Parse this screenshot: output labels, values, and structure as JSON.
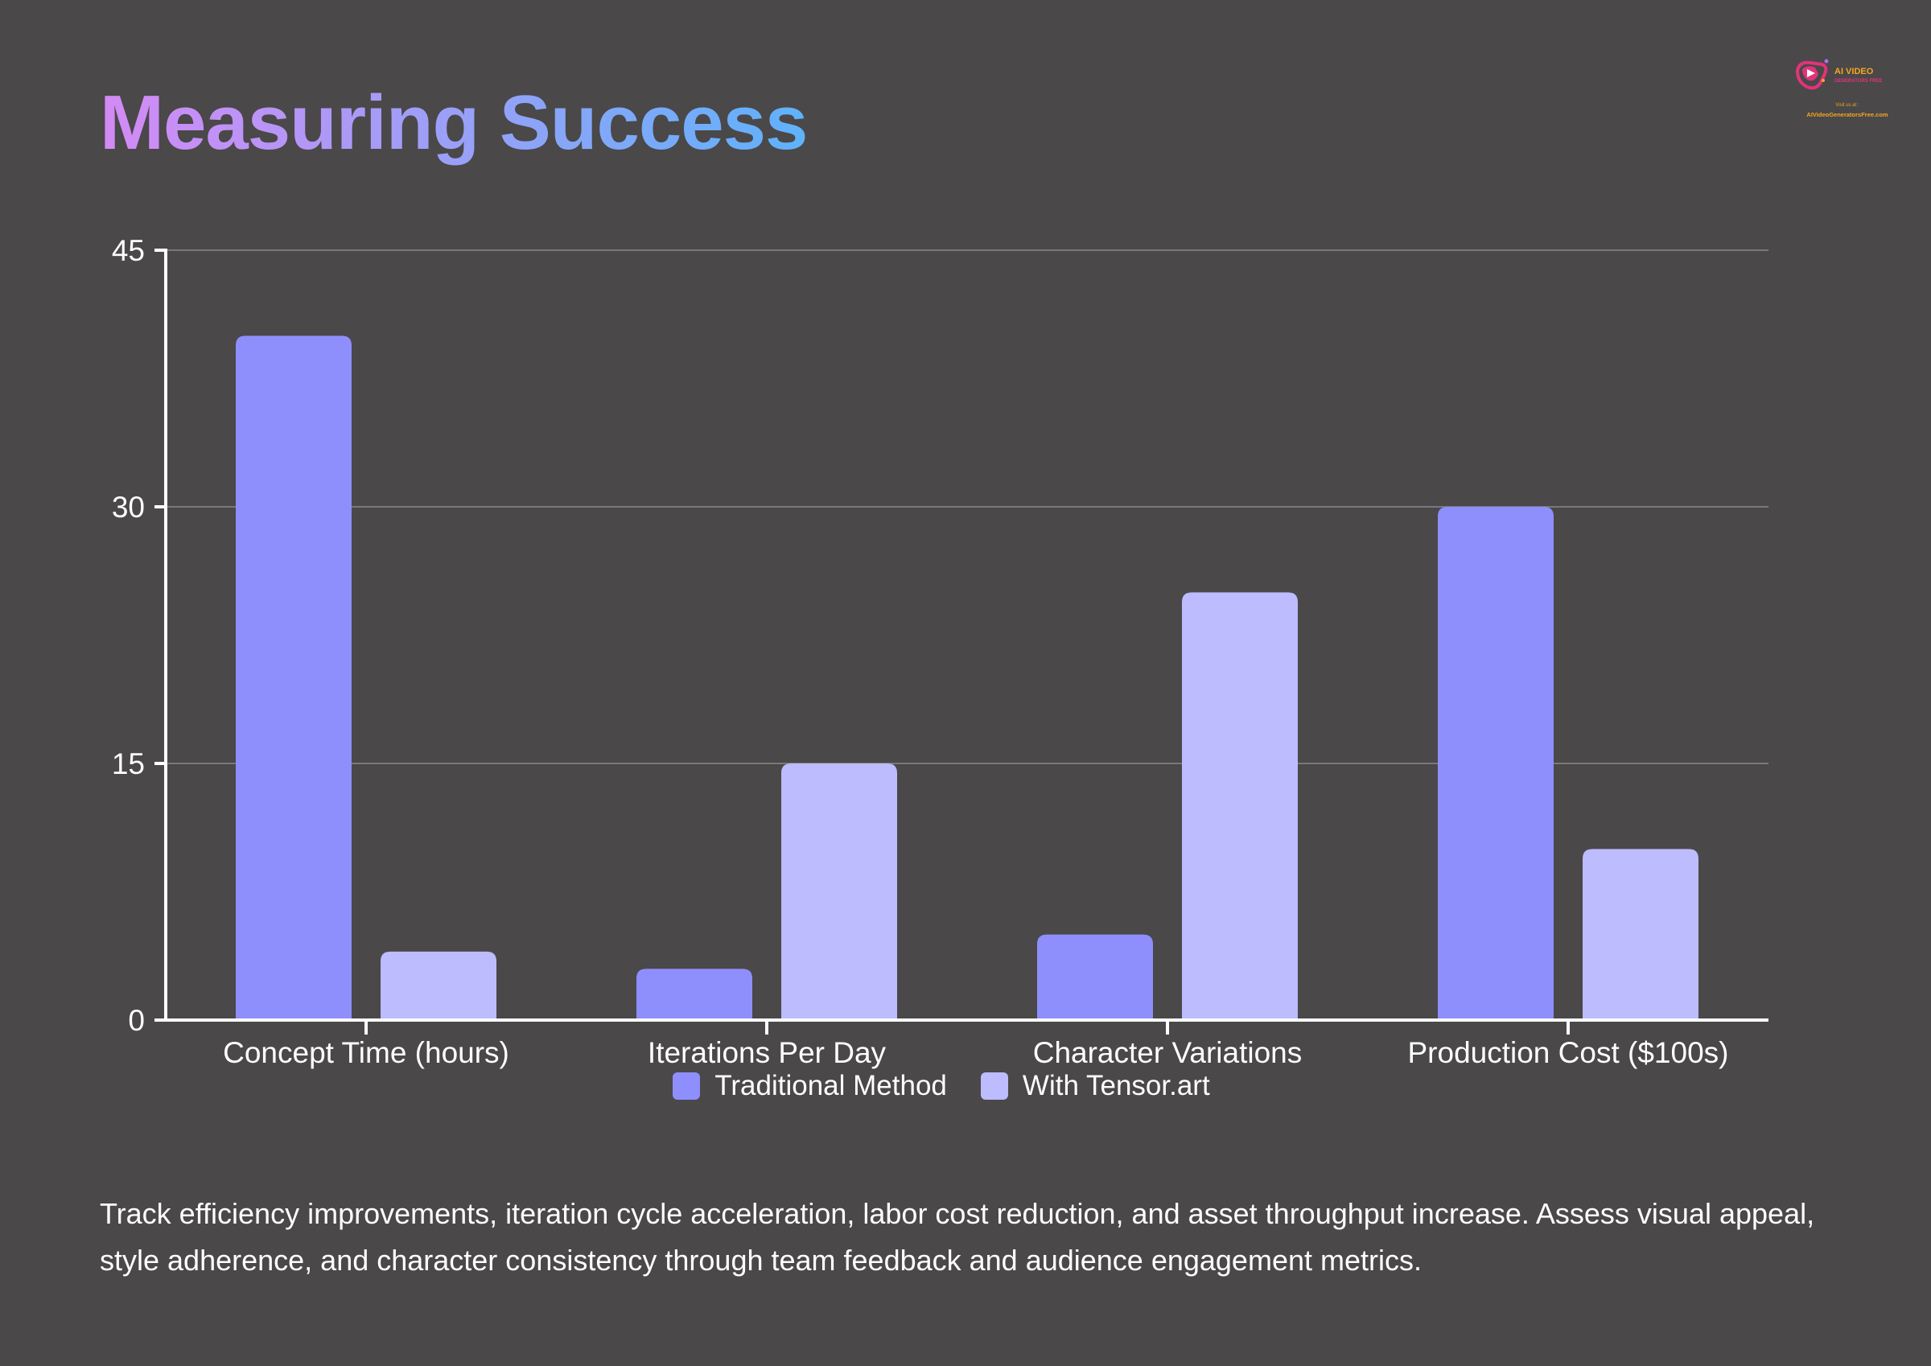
{
  "page": {
    "title": "Measuring Success",
    "description": "Track efficiency improvements, iteration cycle acceleration, labor cost reduction, and asset throughput increase. Assess visual appeal, style adherence, and character consistency through team feedback and audience engagement metrics.",
    "logo": {
      "line1": "AI VIDEO",
      "line2": "GENERATORS FREE",
      "line3": "Visit us at :",
      "line4": "AIVideoGeneratorsFree.com"
    }
  },
  "colors": {
    "background": "#4a4849",
    "traditional": "#8e8efc",
    "tensor": "#bcbcfe",
    "title_gradient": [
      "#d48af5",
      "#9aa0f7",
      "#5fb2fb"
    ]
  },
  "chart_data": {
    "type": "bar",
    "title": "",
    "xlabel": "",
    "ylabel": "",
    "categories": [
      "Concept Time (hours)",
      "Iterations Per Day",
      "Character Variations",
      "Production Cost ($100s)"
    ],
    "series": [
      {
        "name": "Traditional Method",
        "values": [
          40,
          3,
          5,
          30
        ],
        "color": "#8e8efc"
      },
      {
        "name": "With Tensor.art",
        "values": [
          4,
          15,
          25,
          10
        ],
        "color": "#bcbcfe"
      }
    ],
    "ylim": [
      0,
      45
    ],
    "yticks": [
      0,
      15,
      30,
      45
    ],
    "grid": true,
    "legend_position": "bottom"
  }
}
